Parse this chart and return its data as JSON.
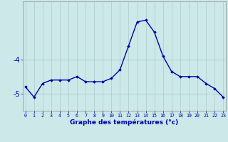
{
  "x": [
    0,
    1,
    2,
    3,
    4,
    5,
    6,
    7,
    8,
    9,
    10,
    11,
    12,
    13,
    14,
    15,
    16,
    17,
    18,
    19,
    20,
    21,
    22,
    23
  ],
  "y": [
    -4.8,
    -5.1,
    -4.7,
    -4.6,
    -4.6,
    -4.6,
    -4.5,
    -4.65,
    -4.65,
    -4.65,
    -4.55,
    -4.3,
    -3.6,
    -2.9,
    -2.85,
    -3.2,
    -3.9,
    -4.35,
    -4.5,
    -4.5,
    -4.5,
    -4.7,
    -4.85,
    -5.1
  ],
  "line_color": "#0000aa",
  "marker": "D",
  "marker_size": 1.8,
  "bg_color": "#cce8e8",
  "grid_color": "#aacccc",
  "xlabel": "Graphe des températures (°c)",
  "xlabel_color": "#0000aa",
  "ytick_labels": [
    "-5",
    "-4"
  ],
  "ytick_vals": [
    -5,
    -4
  ],
  "xticks": [
    0,
    1,
    2,
    3,
    4,
    5,
    6,
    7,
    8,
    9,
    10,
    11,
    12,
    13,
    14,
    15,
    16,
    17,
    18,
    19,
    20,
    21,
    22,
    23
  ],
  "ylim": [
    -5.5,
    -2.3
  ],
  "xlim": [
    -0.3,
    23.3
  ],
  "axis_color": "#0000aa",
  "tick_color": "#0000aa",
  "linewidth": 1.0,
  "xlabel_fontsize": 6.5,
  "xlabel_bold": true,
  "xtick_fontsize": 4.8,
  "ytick_fontsize": 7.0
}
